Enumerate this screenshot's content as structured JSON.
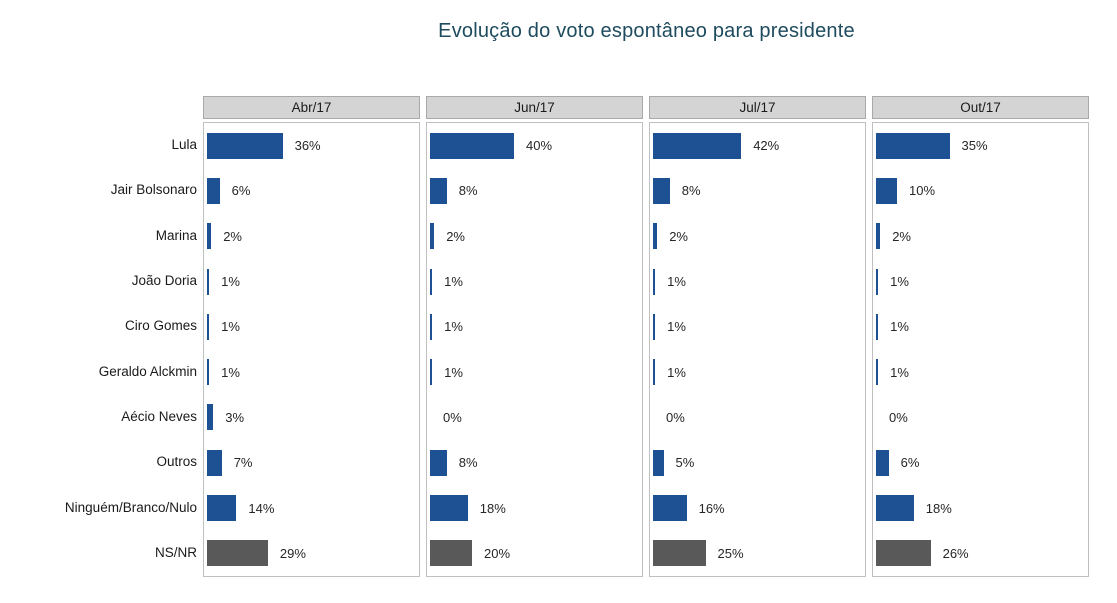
{
  "title": "Evolução do voto espontâneo para presidente",
  "colors": {
    "bar_blue": "#1d5193",
    "bar_gray": "#595959",
    "title_text": "#1e4b5e",
    "header_bg": "#d4d4d4",
    "panel_border": "#c0c0c0"
  },
  "chart_data": {
    "type": "bar",
    "orientation": "horizontal",
    "title": "Evolução do voto espontâneo para presidente",
    "value_suffix": "%",
    "xlim": [
      0,
      100
    ],
    "grid": false,
    "panels": [
      "Abr/17",
      "Jun/17",
      "Jul/17",
      "Out/17"
    ],
    "categories": [
      "Lula",
      "Jair Bolsonaro",
      "Marina",
      "João Doria",
      "Ciro Gomes",
      "Geraldo Alckmin",
      "Aécio Neves",
      "Outros",
      "Ninguém/Branco/Nulo",
      "NS/NR"
    ],
    "series": [
      {
        "name": "Abr/17",
        "values": [
          36,
          6,
          2,
          1,
          1,
          1,
          3,
          7,
          14,
          29
        ]
      },
      {
        "name": "Jun/17",
        "values": [
          40,
          8,
          2,
          1,
          1,
          1,
          0,
          8,
          18,
          20
        ]
      },
      {
        "name": "Jul/17",
        "values": [
          42,
          8,
          2,
          1,
          1,
          1,
          0,
          5,
          16,
          25
        ]
      },
      {
        "name": "Out/17",
        "values": [
          35,
          10,
          2,
          1,
          1,
          1,
          0,
          6,
          18,
          26
        ]
      }
    ],
    "gray_category": "NS/NR"
  }
}
